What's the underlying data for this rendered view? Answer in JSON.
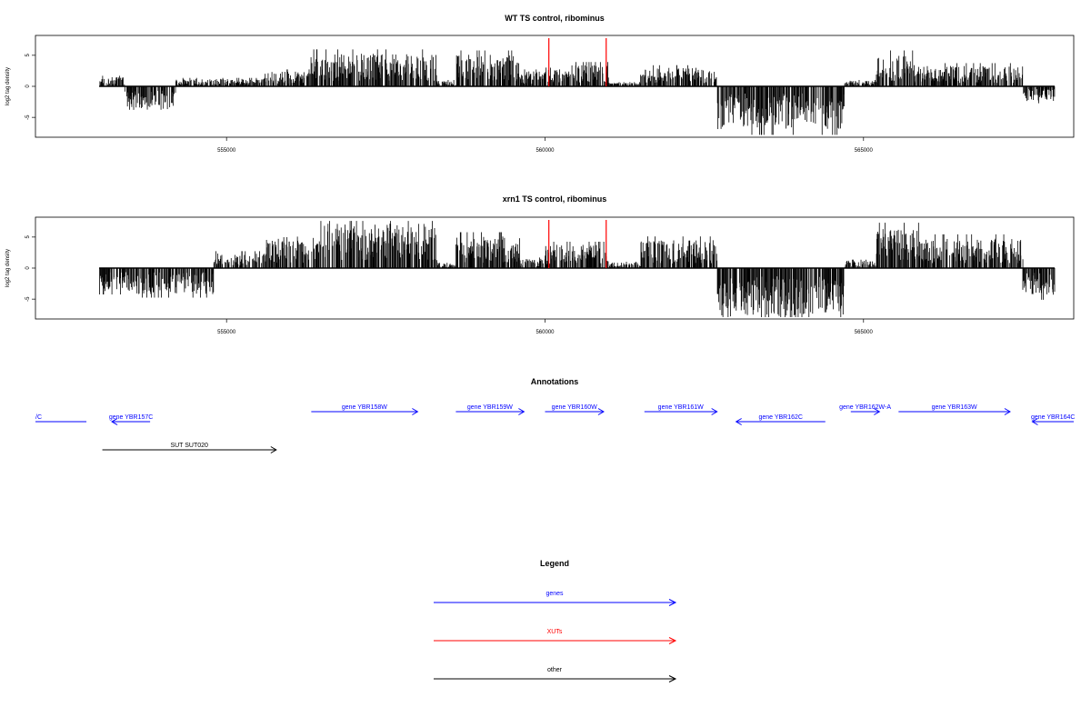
{
  "colors": {
    "genes": "#0000ff",
    "xuts": "#ff0000",
    "other": "#000000",
    "density": "#000000",
    "marker": "#ff0000"
  },
  "chart_data": [
    {
      "type": "bar",
      "title": "WT TS control, ribominus",
      "ylabel": "log2 tag density",
      "xlim": [
        552000,
        568300
      ],
      "ylim": [
        -8.2,
        8.2
      ],
      "yticks": [
        -5,
        0,
        5
      ],
      "ytick_labels": [
        "-5",
        "0",
        "5"
      ],
      "xticks": [
        555000,
        560000,
        565000
      ],
      "xtick_labels": [
        "555000",
        "560000",
        "565000"
      ],
      "grid": false,
      "markers": [
        560060,
        560960
      ],
      "profile_regions": [
        {
          "start": 553000,
          "end": 553400,
          "value": 1.0
        },
        {
          "start": 553400,
          "end": 554200,
          "value": -2.6
        },
        {
          "start": 554200,
          "end": 555600,
          "value": 0.8
        },
        {
          "start": 555600,
          "end": 556300,
          "value": 1.6
        },
        {
          "start": 556300,
          "end": 558300,
          "value": 3.5
        },
        {
          "start": 558300,
          "end": 558600,
          "value": 0.6
        },
        {
          "start": 558600,
          "end": 559600,
          "value": 3.4
        },
        {
          "start": 559600,
          "end": 560000,
          "value": 1.6
        },
        {
          "start": 560000,
          "end": 561000,
          "value": 2.3
        },
        {
          "start": 561000,
          "end": 561500,
          "value": 0.4
        },
        {
          "start": 561500,
          "end": 562700,
          "value": 2.0
        },
        {
          "start": 562700,
          "end": 564700,
          "value": -4.6
        },
        {
          "start": 564700,
          "end": 565200,
          "value": 0.6
        },
        {
          "start": 565200,
          "end": 565800,
          "value": 3.4
        },
        {
          "start": 565800,
          "end": 567500,
          "value": 2.2
        },
        {
          "start": 567500,
          "end": 568000,
          "value": -1.6
        }
      ]
    },
    {
      "type": "bar",
      "title": "xrn1 TS control, ribominus",
      "ylabel": "log2 tag density",
      "xlim": [
        552000,
        568300
      ],
      "ylim": [
        -8.2,
        8.2
      ],
      "yticks": [
        -5,
        0,
        5
      ],
      "ytick_labels": [
        "-5",
        "0",
        "5"
      ],
      "xticks": [
        555000,
        560000,
        565000
      ],
      "xtick_labels": [
        "555000",
        "560000",
        "565000"
      ],
      "grid": false,
      "markers": [
        560060,
        560960
      ],
      "profile_regions": [
        {
          "start": 553000,
          "end": 553500,
          "value": -2.5
        },
        {
          "start": 553500,
          "end": 554800,
          "value": -2.8
        },
        {
          "start": 554800,
          "end": 555600,
          "value": 1.6
        },
        {
          "start": 555600,
          "end": 556400,
          "value": 3.4
        },
        {
          "start": 556400,
          "end": 558300,
          "value": 4.8
        },
        {
          "start": 558300,
          "end": 558600,
          "value": 0.5
        },
        {
          "start": 558600,
          "end": 559600,
          "value": 3.4
        },
        {
          "start": 559600,
          "end": 560000,
          "value": 1.0
        },
        {
          "start": 560000,
          "end": 561000,
          "value": 2.5
        },
        {
          "start": 561000,
          "end": 561500,
          "value": 0.6
        },
        {
          "start": 561500,
          "end": 562700,
          "value": 3.0
        },
        {
          "start": 562700,
          "end": 564700,
          "value": -5.2
        },
        {
          "start": 564700,
          "end": 565200,
          "value": 0.8
        },
        {
          "start": 565200,
          "end": 565900,
          "value": 4.3
        },
        {
          "start": 565900,
          "end": 567500,
          "value": 3.2
        },
        {
          "start": 567500,
          "end": 568000,
          "value": -3.0
        }
      ]
    }
  ],
  "annotations": {
    "title": "Annotations",
    "features": [
      {
        "label": "/C",
        "start": 552000,
        "end": 552800,
        "strand": "-",
        "kind": "genes",
        "row": 1,
        "clipped": true
      },
      {
        "label": "gene YBR157C",
        "start": 553200,
        "end": 553800,
        "strand": "-",
        "kind": "genes",
        "row": 1
      },
      {
        "label": "gene YBR158W",
        "start": 556330,
        "end": 558000,
        "strand": "+",
        "kind": "genes",
        "row": 0
      },
      {
        "label": "gene YBR159W",
        "start": 558600,
        "end": 559670,
        "strand": "+",
        "kind": "genes",
        "row": 0
      },
      {
        "label": "gene YBR160W",
        "start": 560000,
        "end": 560920,
        "strand": "+",
        "kind": "genes",
        "row": 0
      },
      {
        "label": "gene YBR161W",
        "start": 561560,
        "end": 562700,
        "strand": "+",
        "kind": "genes",
        "row": 0
      },
      {
        "label": "gene YBR162C",
        "start": 563000,
        "end": 564400,
        "strand": "-",
        "kind": "genes",
        "row": 1
      },
      {
        "label": "gene YBR162W-A",
        "start": 564800,
        "end": 565250,
        "strand": "+",
        "kind": "genes",
        "row": 0
      },
      {
        "label": "gene YBR163W",
        "start": 565550,
        "end": 567300,
        "strand": "+",
        "kind": "genes",
        "row": 0
      },
      {
        "label": "gene YBR164C",
        "start": 567650,
        "end": 568300,
        "strand": "-",
        "kind": "genes",
        "row": 1
      },
      {
        "label": "SUT SUT020",
        "start": 553050,
        "end": 555780,
        "strand": "+",
        "kind": "other",
        "row": 2
      }
    ]
  },
  "legend": {
    "title": "Legend",
    "items": [
      {
        "label": "genes",
        "kind": "genes"
      },
      {
        "label": "XUTs",
        "kind": "xuts"
      },
      {
        "label": "other",
        "kind": "other"
      }
    ]
  }
}
